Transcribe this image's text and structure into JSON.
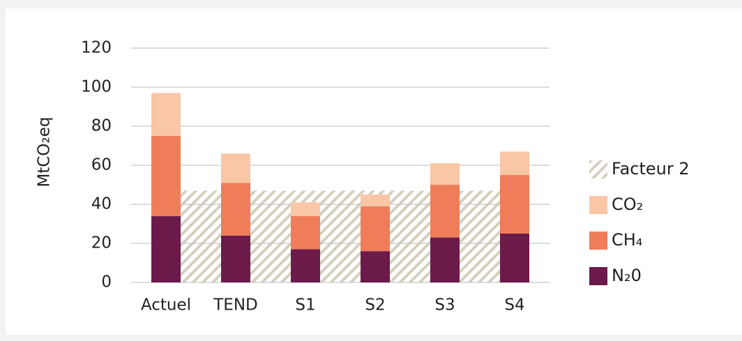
{
  "chart_data": {
    "type": "stacked_bar",
    "y_label": "MtCO₂eq",
    "categories": [
      "Actuel",
      "TEND",
      "S1",
      "S2",
      "S3",
      "S4"
    ],
    "series": [
      {
        "name": "N₂0",
        "color": "#6b1a4a",
        "values": [
          34,
          24,
          17,
          16,
          23,
          25
        ]
      },
      {
        "name": "CH₄",
        "color": "#ef7d5a",
        "values": [
          41,
          27,
          17,
          23,
          27,
          30
        ]
      },
      {
        "name": "CO₂",
        "color": "#f9c6a6",
        "values": [
          22,
          15,
          7,
          6,
          11,
          12
        ]
      }
    ],
    "reference": {
      "name": "Facteur 2",
      "value": 47,
      "color": "#d4cfbd"
    },
    "ylim": [
      0,
      120
    ],
    "yticks": [
      0,
      20,
      40,
      60,
      80,
      100,
      120
    ],
    "grid": true
  }
}
